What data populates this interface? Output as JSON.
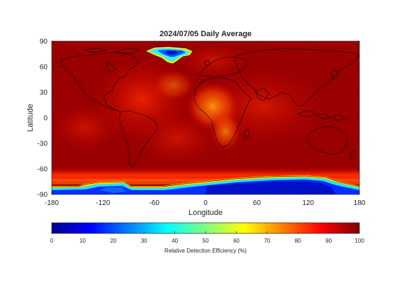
{
  "title": "2024/07/05 Daily Average",
  "x_axis": {
    "label": "Longitude",
    "range": [
      -180,
      180
    ],
    "ticks": [
      -180,
      -120,
      -60,
      0,
      60,
      120,
      180
    ]
  },
  "y_axis": {
    "label": "Latitude",
    "range": [
      -90,
      90
    ],
    "ticks": [
      90,
      60,
      30,
      0,
      -30,
      -60,
      -90
    ]
  },
  "colorbar": {
    "label": "Relative Detection Efficiency (%)",
    "range": [
      0,
      100
    ],
    "ticks": [
      0,
      10,
      20,
      30,
      40,
      50,
      60,
      70,
      80,
      90,
      100
    ],
    "colormap": "jet"
  },
  "colors": {
    "background_red": "#9a0000",
    "low_blue": "#0010d0",
    "mid_orange": "#ff7a00"
  }
}
